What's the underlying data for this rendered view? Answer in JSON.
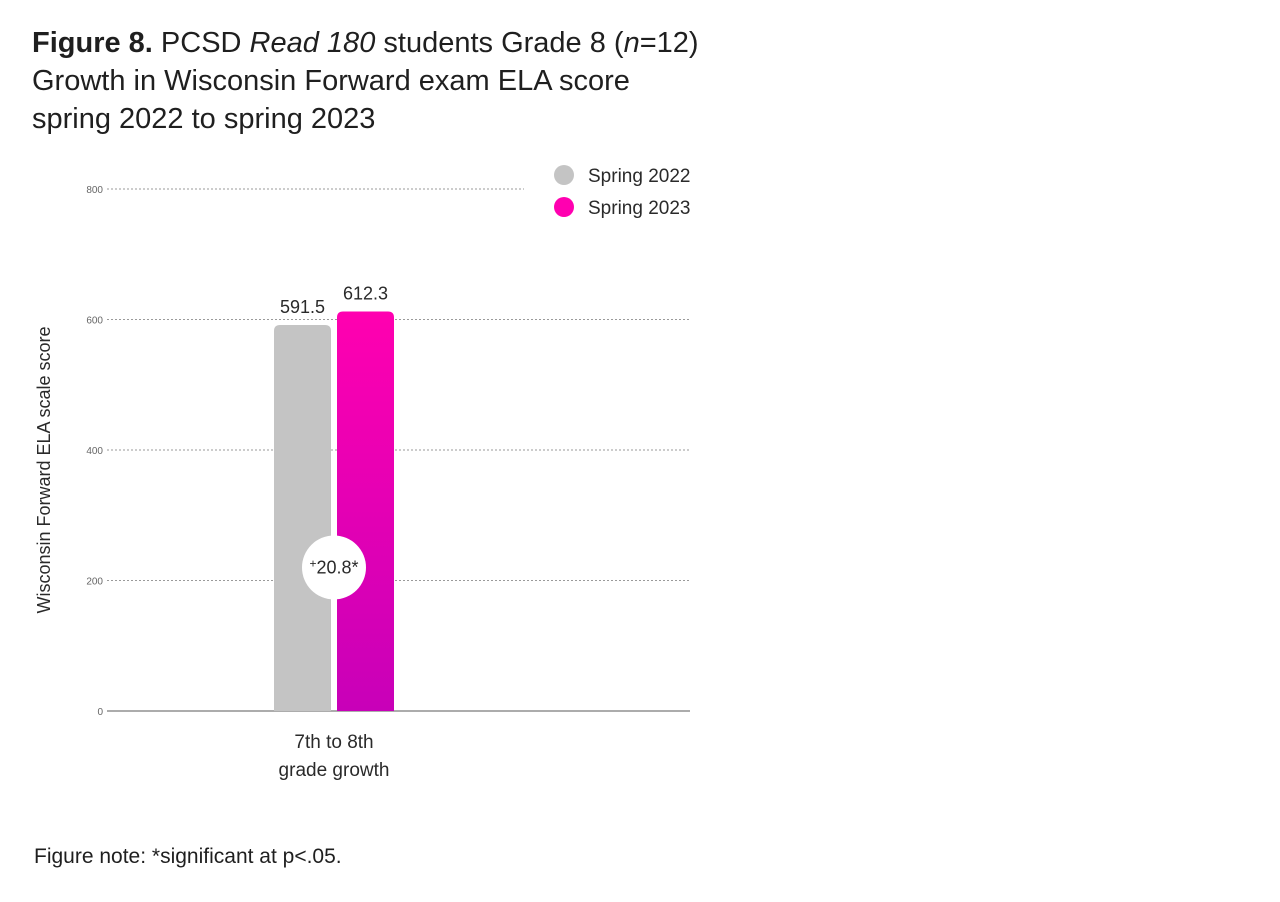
{
  "figure": {
    "label": "Figure 8.",
    "title_part1": " PCSD ",
    "title_italic": "Read 180",
    "title_part2": " students Grade 8 (",
    "n_italic": "n",
    "n_value": "=12)",
    "title_line2": "Growth in Wisconsin Forward exam ELA score",
    "title_line3": "spring 2022 to spring 2023"
  },
  "note": "Figure note: *significant at p<.05.",
  "colors": {
    "spring_2022": "#c4c4c4",
    "spring_2023_top": "#ff00b0",
    "spring_2023_bottom": "#c800b8",
    "grid": "#9a9a9a",
    "axis": "#7a7a7a"
  },
  "chart_data": {
    "type": "bar",
    "categories": [
      "7th to 8th grade growth"
    ],
    "category_lines": [
      [
        "7th to 8th",
        "grade growth"
      ]
    ],
    "series": [
      {
        "name": "Spring 2022",
        "values": [
          591.5
        ],
        "label": "591.5",
        "color": "#c4c4c4"
      },
      {
        "name": "Spring 2023",
        "values": [
          612.3
        ],
        "label": "612.3",
        "color": "#ff00b0"
      }
    ],
    "ylabel": "Wisconsin Forward ELA scale score",
    "xlabel": "",
    "ylim": [
      0,
      800
    ],
    "yticks": [
      0,
      200,
      400,
      600,
      800
    ],
    "ytick_labels": [
      "0",
      "200",
      "400",
      "600",
      "800"
    ],
    "grid": true,
    "legend_position": "top-right",
    "annotation": {
      "prefix": "+",
      "text": "20.8*"
    }
  }
}
